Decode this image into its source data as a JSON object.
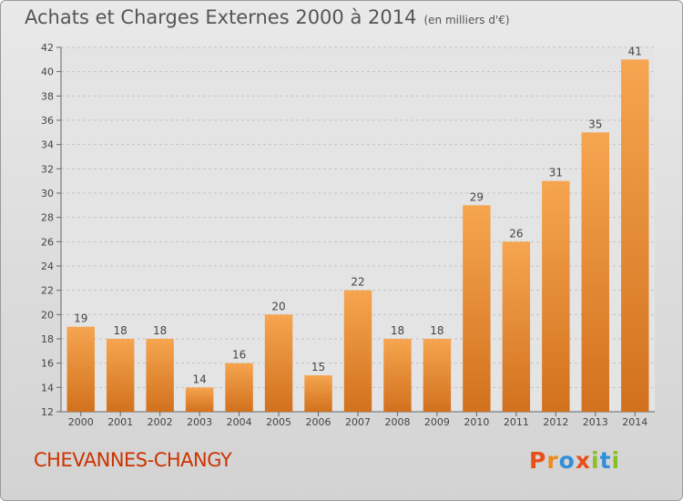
{
  "chart_data": {
    "type": "bar",
    "title": "Achats et Charges Externes 2000 à 2014",
    "subtitle": "(en milliers d'€)",
    "categories": [
      "2000",
      "2001",
      "2002",
      "2003",
      "2004",
      "2005",
      "2006",
      "2007",
      "2008",
      "2009",
      "2010",
      "2011",
      "2012",
      "2013",
      "2014"
    ],
    "values": [
      19,
      18,
      18,
      14,
      16,
      20,
      15,
      22,
      18,
      18,
      29,
      26,
      31,
      35,
      41
    ],
    "ylim": [
      12,
      42
    ],
    "yticks": [
      12,
      14,
      16,
      18,
      20,
      22,
      24,
      26,
      28,
      30,
      32,
      34,
      36,
      38,
      40,
      42
    ],
    "grid": true,
    "bar_color_top": "#f6a550",
    "bar_color_bottom": "#d2711d"
  },
  "place_name": "CHEVANNES-CHANGY",
  "logo": {
    "letters": [
      "P",
      "r",
      "o",
      "x",
      "i",
      "t",
      "i"
    ],
    "colors": [
      "#e8501a",
      "#ec8a1e",
      "#2f8fd8",
      "#e8501a",
      "#8bbf24",
      "#2f8fd8",
      "#8bbf24"
    ]
  }
}
